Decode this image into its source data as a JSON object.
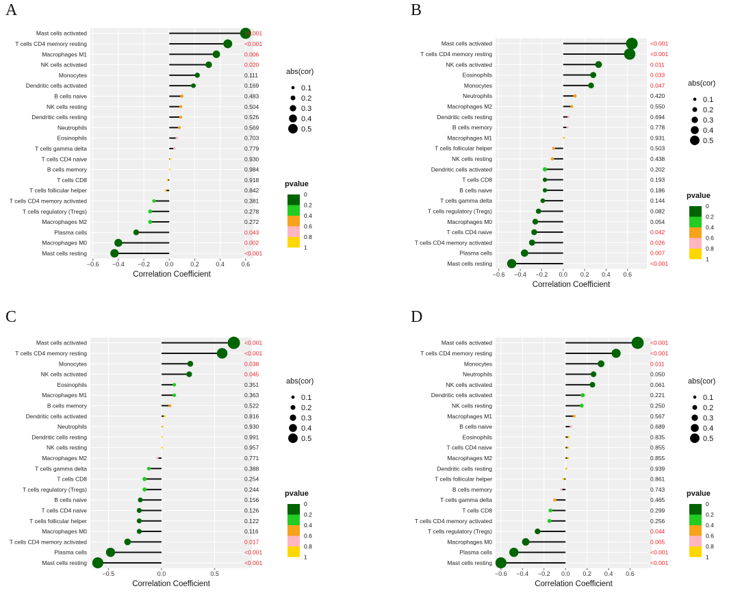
{
  "colors": {
    "significant_text": "#e8222a",
    "normal_text": "#222222",
    "panel_bg": "#efefef",
    "grid": "#ffffff",
    "stick": "#111111",
    "scale": [
      "#006400",
      "#22cc22",
      "#f7a21b",
      "#ffb6c1",
      "#ffd700"
    ]
  },
  "legend": {
    "size_title": "abs(cor)",
    "size_labels": [
      "0.1",
      "0.2",
      "0.3",
      "0.4",
      "0.5"
    ],
    "color_title": "pvalue",
    "color_labels": [
      "0",
      "0.2",
      "0.4",
      "0.6",
      "0.8",
      "1"
    ]
  },
  "chart_data": [
    {
      "type": "lollipop",
      "panel": "A",
      "xlabel": "Correlation Coefficient",
      "xlim": [
        -0.62,
        0.66
      ],
      "xticks": [
        -0.6,
        -0.4,
        -0.2,
        0.0,
        0.2,
        0.4,
        0.6
      ],
      "xtick_labels": [
        "−0.6",
        "−0.4",
        "−0.2",
        "0.0",
        "0.2",
        "0.4",
        "0.6"
      ],
      "rows": [
        {
          "cell": "Mast cells activated",
          "cor": 0.6,
          "pvalue": "<0.001",
          "p": 0.0005
        },
        {
          "cell": "T cells CD4 memory resting",
          "cor": 0.46,
          "pvalue": "<0.001",
          "p": 0.0005
        },
        {
          "cell": "Macrophages M1",
          "cor": 0.37,
          "pvalue": "0.006",
          "p": 0.006
        },
        {
          "cell": "NK cells activated",
          "cor": 0.31,
          "pvalue": "0.020",
          "p": 0.02
        },
        {
          "cell": "Monocytes",
          "cor": 0.22,
          "pvalue": "0.111",
          "p": 0.111
        },
        {
          "cell": "Dendritic cells activated",
          "cor": 0.19,
          "pvalue": "0.169",
          "p": 0.169
        },
        {
          "cell": "B cells naive",
          "cor": 0.1,
          "pvalue": "0.483",
          "p": 0.483
        },
        {
          "cell": "NK cells resting",
          "cor": 0.09,
          "pvalue": "0.504",
          "p": 0.504
        },
        {
          "cell": "Dendritic cells resting",
          "cor": 0.09,
          "pvalue": "0.526",
          "p": 0.526
        },
        {
          "cell": "Neutrophils",
          "cor": 0.08,
          "pvalue": "0.569",
          "p": 0.569
        },
        {
          "cell": "Eosinophils",
          "cor": 0.06,
          "pvalue": "0.703",
          "p": 0.703
        },
        {
          "cell": "T cells gamma delta",
          "cor": 0.04,
          "pvalue": "0.779",
          "p": 0.779
        },
        {
          "cell": "T cells CD4 naive",
          "cor": 0.01,
          "pvalue": "0.930",
          "p": 0.93
        },
        {
          "cell": "B cells memory",
          "cor": 0.003,
          "pvalue": "0.984",
          "p": 0.984
        },
        {
          "cell": "T cells CD8",
          "cor": -0.015,
          "pvalue": "0.918",
          "p": 0.918
        },
        {
          "cell": "T cells follicular helper",
          "cor": -0.03,
          "pvalue": "0.842",
          "p": 0.842
        },
        {
          "cell": "T cells CD4 memory activated",
          "cor": -0.12,
          "pvalue": "0.381",
          "p": 0.381
        },
        {
          "cell": "T cells regulatory (Tregs)",
          "cor": -0.15,
          "pvalue": "0.278",
          "p": 0.278
        },
        {
          "cell": "Macrophages M2",
          "cor": -0.15,
          "pvalue": "0.272",
          "p": 0.272
        },
        {
          "cell": "Plasma cells",
          "cor": -0.26,
          "pvalue": "0.043",
          "p": 0.043
        },
        {
          "cell": "Macrophages M0",
          "cor": -0.4,
          "pvalue": "0.002",
          "p": 0.002
        },
        {
          "cell": "Mast cells resting",
          "cor": -0.43,
          "pvalue": "<0.001",
          "p": 0.0005
        }
      ]
    },
    {
      "type": "lollipop",
      "panel": "B",
      "xlabel": "Correlation Coefficient",
      "xlim": [
        -0.63,
        0.78
      ],
      "xticks": [
        -0.6,
        -0.4,
        -0.2,
        0.0,
        0.2,
        0.4,
        0.6
      ],
      "xtick_labels": [
        "−0.6",
        "−0.4",
        "−0.2",
        "0.0",
        "0.2",
        "0.4",
        "0.6"
      ],
      "rows": [
        {
          "cell": "Mast cells activated",
          "cor": 0.64,
          "pvalue": "<0.001",
          "p": 0.0005
        },
        {
          "cell": "T cells CD4 memory resting",
          "cor": 0.62,
          "pvalue": "<0.001",
          "p": 0.0005
        },
        {
          "cell": "NK cells activated",
          "cor": 0.33,
          "pvalue": "0.011",
          "p": 0.011
        },
        {
          "cell": "Eosinophils",
          "cor": 0.28,
          "pvalue": "0.033",
          "p": 0.033
        },
        {
          "cell": "Monocytes",
          "cor": 0.26,
          "pvalue": "0.047",
          "p": 0.047
        },
        {
          "cell": "Neutrophils",
          "cor": 0.11,
          "pvalue": "0.420",
          "p": 0.42
        },
        {
          "cell": "Macrophages M2",
          "cor": 0.08,
          "pvalue": "0.550",
          "p": 0.55
        },
        {
          "cell": "Dendritic cells resting",
          "cor": 0.05,
          "pvalue": "0.694",
          "p": 0.694
        },
        {
          "cell": "B cells memory",
          "cor": 0.04,
          "pvalue": "0.778",
          "p": 0.778
        },
        {
          "cell": "Macrophages M1",
          "cor": 0.01,
          "pvalue": "0.931",
          "p": 0.931
        },
        {
          "cell": "T cells follicular helper",
          "cor": -0.09,
          "pvalue": "0.503",
          "p": 0.503
        },
        {
          "cell": "NK cells resting",
          "cor": -0.1,
          "pvalue": "0.438",
          "p": 0.438
        },
        {
          "cell": "Dendritic cells activated",
          "cor": -0.17,
          "pvalue": "0.202",
          "p": 0.202
        },
        {
          "cell": "T cells CD8",
          "cor": -0.17,
          "pvalue": "0.193",
          "p": 0.193
        },
        {
          "cell": "B cells naive",
          "cor": -0.17,
          "pvalue": "0.186",
          "p": 0.186
        },
        {
          "cell": "T cells gamma delta",
          "cor": -0.19,
          "pvalue": "0.144",
          "p": 0.144
        },
        {
          "cell": "T cells regulatory (Tregs)",
          "cor": -0.23,
          "pvalue": "0.082",
          "p": 0.082
        },
        {
          "cell": "Macrophages M0",
          "cor": -0.26,
          "pvalue": "0.054",
          "p": 0.054
        },
        {
          "cell": "T cells CD4 naive",
          "cor": -0.27,
          "pvalue": "0.042",
          "p": 0.042
        },
        {
          "cell": "T cells CD4 memory activated",
          "cor": -0.29,
          "pvalue": "0.026",
          "p": 0.026
        },
        {
          "cell": "Plasma cells",
          "cor": -0.36,
          "pvalue": "0.007",
          "p": 0.007
        },
        {
          "cell": "Mast cells resting",
          "cor": -0.48,
          "pvalue": "<0.001",
          "p": 0.0005
        }
      ]
    },
    {
      "type": "lollipop",
      "panel": "C",
      "xlabel": "Correlation Coefficient",
      "xlim": [
        -0.67,
        0.85
      ],
      "xticks": [
        -0.5,
        0.0,
        0.5
      ],
      "xtick_labels": [
        "−0.5",
        "0.0",
        "0.5"
      ],
      "rows": [
        {
          "cell": "Mast cells activated",
          "cor": 0.68,
          "pvalue": "<0.001",
          "p": 0.0005
        },
        {
          "cell": "T cells CD4 memory resting",
          "cor": 0.57,
          "pvalue": "<0.001",
          "p": 0.0005
        },
        {
          "cell": "Monocytes",
          "cor": 0.27,
          "pvalue": "0.038",
          "p": 0.038
        },
        {
          "cell": "NK cells activated",
          "cor": 0.26,
          "pvalue": "0.045",
          "p": 0.045
        },
        {
          "cell": "Eosinophils",
          "cor": 0.12,
          "pvalue": "0.351",
          "p": 0.351
        },
        {
          "cell": "Macrophages M1",
          "cor": 0.12,
          "pvalue": "0.363",
          "p": 0.363
        },
        {
          "cell": "B cells memory",
          "cor": 0.08,
          "pvalue": "0.522",
          "p": 0.522
        },
        {
          "cell": "Dendritic cells activated",
          "cor": 0.03,
          "pvalue": "0.816",
          "p": 0.816
        },
        {
          "cell": "Neutrophils",
          "cor": 0.01,
          "pvalue": "0.930",
          "p": 0.93
        },
        {
          "cell": "Dendritic cells resting",
          "cor": 0.003,
          "pvalue": "0.991",
          "p": 0.991
        },
        {
          "cell": "NK cells resting",
          "cor": 0.005,
          "pvalue": "0.957",
          "p": 0.957
        },
        {
          "cell": "Macrophages M2",
          "cor": -0.04,
          "pvalue": "0.771",
          "p": 0.771
        },
        {
          "cell": "T cells gamma delta",
          "cor": -0.12,
          "pvalue": "0.388",
          "p": 0.388
        },
        {
          "cell": "T cells CD8",
          "cor": -0.16,
          "pvalue": "0.254",
          "p": 0.254
        },
        {
          "cell": "T cells regulatory (Tregs)",
          "cor": -0.16,
          "pvalue": "0.244",
          "p": 0.244
        },
        {
          "cell": "B cells naive",
          "cor": -0.2,
          "pvalue": "0.156",
          "p": 0.156
        },
        {
          "cell": "T cells CD4 naive",
          "cor": -0.21,
          "pvalue": "0.126",
          "p": 0.126
        },
        {
          "cell": "T cells follicular helper",
          "cor": -0.21,
          "pvalue": "0.122",
          "p": 0.122
        },
        {
          "cell": "Macrophages M0",
          "cor": -0.21,
          "pvalue": "0.116",
          "p": 0.116
        },
        {
          "cell": "T cells CD4 memory activated",
          "cor": -0.32,
          "pvalue": "0.017",
          "p": 0.017
        },
        {
          "cell": "Plasma cells",
          "cor": -0.48,
          "pvalue": "<0.001",
          "p": 0.0005
        },
        {
          "cell": "Mast cells resting",
          "cor": -0.6,
          "pvalue": "<0.001",
          "p": 0.0005
        }
      ]
    },
    {
      "type": "lollipop",
      "panel": "D",
      "xlabel": "Correlation Coefficient",
      "xlim": [
        -0.65,
        0.8
      ],
      "xticks": [
        -0.6,
        -0.4,
        -0.2,
        0.0,
        0.2,
        0.4,
        0.6
      ],
      "xtick_labels": [
        "−0.6",
        "−0.4",
        "−0.2",
        "0.0",
        "0.2",
        "0.4",
        "0.6"
      ],
      "rows": [
        {
          "cell": "Mast cells activated",
          "cor": 0.67,
          "pvalue": "<0.001",
          "p": 0.0005
        },
        {
          "cell": "T cells CD4 memory resting",
          "cor": 0.47,
          "pvalue": "<0.001",
          "p": 0.0005
        },
        {
          "cell": "Monocytes",
          "cor": 0.33,
          "pvalue": "0.011",
          "p": 0.011
        },
        {
          "cell": "Neutrophils",
          "cor": 0.26,
          "pvalue": "0.050",
          "p": 0.05
        },
        {
          "cell": "NK cells activated",
          "cor": 0.25,
          "pvalue": "0.061",
          "p": 0.061
        },
        {
          "cell": "Dendritic cells activated",
          "cor": 0.16,
          "pvalue": "0.221",
          "p": 0.221
        },
        {
          "cell": "NK cells resting",
          "cor": 0.15,
          "pvalue": "0.250",
          "p": 0.25
        },
        {
          "cell": "Macrophages M1",
          "cor": 0.08,
          "pvalue": "0.567",
          "p": 0.567
        },
        {
          "cell": "B cells naive",
          "cor": 0.05,
          "pvalue": "0.689",
          "p": 0.689
        },
        {
          "cell": "Eosinophils",
          "cor": 0.03,
          "pvalue": "0.835",
          "p": 0.835
        },
        {
          "cell": "T cells CD4 naive",
          "cor": 0.025,
          "pvalue": "0.855",
          "p": 0.855
        },
        {
          "cell": "Macrophages M2",
          "cor": 0.025,
          "pvalue": "0.855",
          "p": 0.855
        },
        {
          "cell": "Dendritic cells resting",
          "cor": 0.01,
          "pvalue": "0.939",
          "p": 0.939
        },
        {
          "cell": "T cells follicular helper",
          "cor": -0.02,
          "pvalue": "0.861",
          "p": 0.861
        },
        {
          "cell": "B cells memory",
          "cor": -0.04,
          "pvalue": "0.743",
          "p": 0.743
        },
        {
          "cell": "T cells gamma delta",
          "cor": -0.1,
          "pvalue": "0.465",
          "p": 0.465
        },
        {
          "cell": "T cells CD8",
          "cor": -0.14,
          "pvalue": "0.299",
          "p": 0.299
        },
        {
          "cell": "T cells CD4 memory activated",
          "cor": -0.15,
          "pvalue": "0.256",
          "p": 0.256
        },
        {
          "cell": "T cells regulatory (Tregs)",
          "cor": -0.26,
          "pvalue": "0.044",
          "p": 0.044
        },
        {
          "cell": "Macrophages M0",
          "cor": -0.37,
          "pvalue": "0.005",
          "p": 0.005
        },
        {
          "cell": "Plasma cells",
          "cor": -0.48,
          "pvalue": "<0.001",
          "p": 0.0005
        },
        {
          "cell": "Mast cells resting",
          "cor": -0.6,
          "pvalue": "<0.001",
          "p": 0.0005
        }
      ]
    }
  ]
}
